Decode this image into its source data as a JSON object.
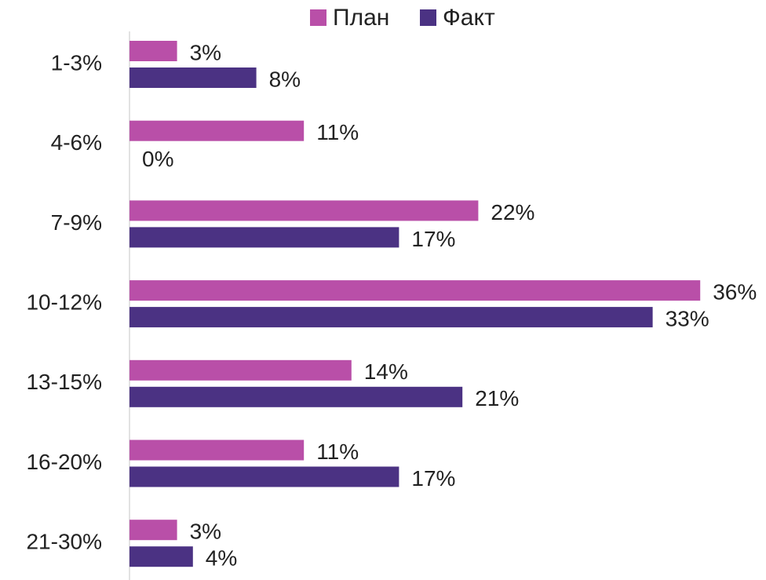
{
  "chart_data": {
    "type": "barh",
    "categories": [
      "1-3%",
      "4-6%",
      "7-9%",
      "10-12%",
      "13-15%",
      "16-20%",
      "21-30%"
    ],
    "series": [
      {
        "name": "План",
        "color": "#b94fa8",
        "values": [
          3,
          11,
          22,
          36,
          14,
          11,
          3
        ],
        "value_labels": [
          "3%",
          "11%",
          "22%",
          "36%",
          "14%",
          "11%",
          "3%"
        ]
      },
      {
        "name": "Факт",
        "color": "#4b3283",
        "values": [
          8,
          0,
          17,
          33,
          21,
          17,
          4
        ],
        "value_labels": [
          "8%",
          "0%",
          "17%",
          "33%",
          "21%",
          "17%",
          "4%"
        ]
      }
    ],
    "xlim": [
      0,
      40
    ],
    "legend": "top"
  }
}
